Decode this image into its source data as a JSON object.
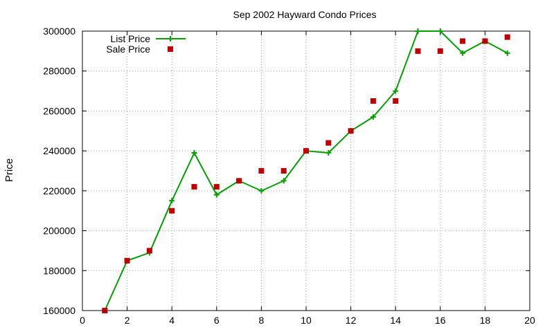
{
  "chart_data": {
    "type": "line",
    "title": "Sep 2002 Hayward Condo Prices",
    "xlabel": "",
    "ylabel": "Price",
    "xlim": [
      0,
      20
    ],
    "ylim": [
      160000,
      300000
    ],
    "x_ticks": [
      0,
      2,
      4,
      6,
      8,
      10,
      12,
      14,
      16,
      18,
      20
    ],
    "y_ticks": [
      160000,
      180000,
      200000,
      220000,
      240000,
      260000,
      280000,
      300000
    ],
    "grid": true,
    "legend_position": "top-left",
    "series": [
      {
        "name": "List Price",
        "style": "line-with-plus-markers",
        "color": "#00a000",
        "x": [
          1,
          2,
          3,
          4,
          5,
          6,
          7,
          8,
          9,
          10,
          11,
          12,
          13,
          14,
          15,
          16,
          17,
          18,
          19
        ],
        "y": [
          160000,
          185000,
          189000,
          215000,
          239000,
          218000,
          225000,
          220000,
          225000,
          240000,
          239000,
          250000,
          257000,
          270000,
          300000,
          300000,
          289000,
          295000,
          289000
        ]
      },
      {
        "name": "Sale Price",
        "style": "square-markers",
        "color": "#c00000",
        "x": [
          1,
          2,
          3,
          4,
          5,
          6,
          7,
          8,
          9,
          10,
          11,
          12,
          13,
          14,
          15,
          16,
          17,
          18,
          19
        ],
        "y": [
          160000,
          185000,
          190000,
          210000,
          222000,
          222000,
          225000,
          230000,
          230000,
          240000,
          244000,
          250000,
          265000,
          265000,
          290000,
          290000,
          295000,
          295000,
          297000
        ]
      }
    ]
  }
}
